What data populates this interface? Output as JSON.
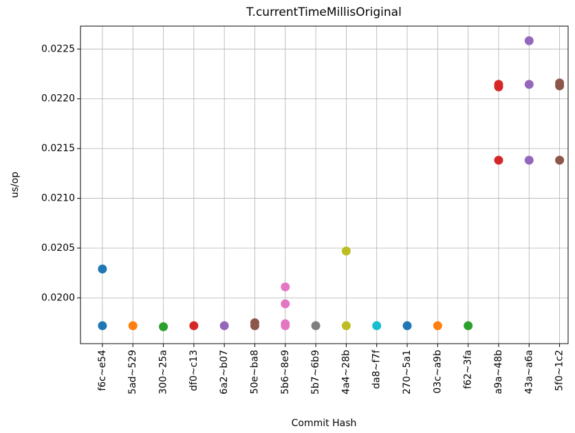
{
  "chart_data": {
    "type": "strip",
    "title": "T.currentTimeMillisOriginal",
    "xlabel": "Commit Hash",
    "ylabel": "us/op",
    "categories": [
      "f6c~e54",
      "5ad~529",
      "300~25a",
      "df0~c13",
      "6a2~b07",
      "50e~ba8",
      "5b6~8e9",
      "5b7~6b9",
      "4a4~28b",
      "da8~f7f",
      "270~5a1",
      "03c~a9b",
      "f62~3fa",
      "a9a~48b",
      "43a~a6a",
      "5f0~1c2"
    ],
    "values": [
      [
        0.01972,
        0.02029
      ],
      [
        0.01972
      ],
      [
        0.01971
      ],
      [
        0.01972
      ],
      [
        0.01972
      ],
      [
        0.01972,
        0.01975
      ],
      [
        0.01972,
        0.01974,
        0.01994,
        0.02011
      ],
      [
        0.01972
      ],
      [
        0.01972,
        0.02047
      ],
      [
        0.01972
      ],
      [
        0.01972
      ],
      [
        0.01972
      ],
      [
        0.01972
      ],
      [
        0.02212,
        0.022145,
        0.021383
      ],
      [
        0.022583,
        0.022145,
        0.021383
      ],
      [
        0.02213,
        0.022159,
        0.021383
      ]
    ],
    "colors": [
      "#1f77b4",
      "#ff7f0e",
      "#2ca02c",
      "#d62728",
      "#9467bd",
      "#8c564b",
      "#e377c2",
      "#7f7f7f",
      "#bcbd22",
      "#17becf",
      "#1f77b4",
      "#ff7f0e",
      "#2ca02c",
      "#d62728",
      "#9467bd",
      "#8c564b"
    ],
    "ylim": [
      0.01954,
      0.02273
    ],
    "yticks": [
      {
        "value": 0.02,
        "label": "0.0200"
      },
      0.0205,
      {
        "value": 0.021,
        "label": "0.0210"
      },
      0.0215,
      {
        "value": 0.022,
        "label": "0.0220"
      },
      0.0225
    ],
    "grid": true
  }
}
